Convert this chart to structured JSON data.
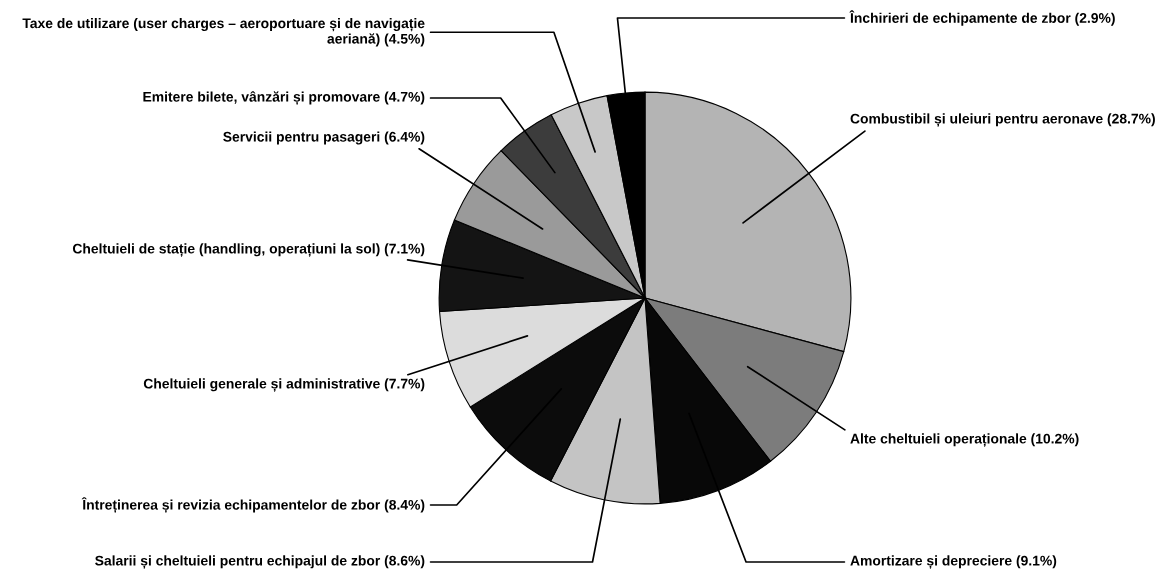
{
  "chart_data": {
    "type": "pie",
    "categories": [
      "Combustibil și uleiuri pentru aeronave",
      "Alte cheltuieli operaționale",
      "Amortizare și depreciere",
      "Salarii și cheltuieli pentru echipajul de zbor",
      "Întreținerea și revizia echipamentelor de zbor",
      "Cheltuieli generale și administrative",
      "Cheltuieli de stație (handling, operațiuni la sol)",
      "Servicii pentru pasageri",
      "Emitere bilete, vânzări și promovare",
      "Taxe de utilizare (user charges – aeroportuare și de navigație\naeriană)",
      "Închirieri de echipamente de zbor"
    ],
    "values": [
      28.7,
      10.2,
      9.1,
      8.6,
      8.4,
      7.7,
      7.1,
      6.4,
      4.7,
      4.5,
      2.9
    ],
    "value_labels": [
      "(28.7%)",
      "(10.2%)",
      "(9.1%)",
      "(8.6%)",
      "(8.4%)",
      "(7.7%)",
      "(7.1%)",
      "(6.4%)",
      "(4.7%)",
      "(4.5%)",
      "(2.9%)"
    ],
    "colors": [
      "#b4b4b4",
      "#7c7c7c",
      "#080808",
      "#c4c4c4",
      "#0c0c0c",
      "#dcdcdc",
      "#141414",
      "#9a9a9a",
      "#3c3c3c",
      "#c8c8c8",
      "#000000"
    ]
  }
}
